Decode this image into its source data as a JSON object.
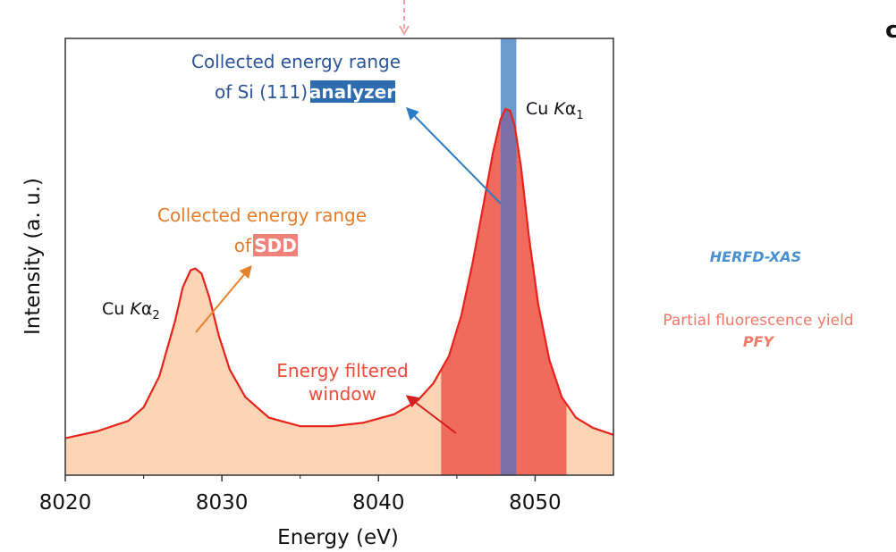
{
  "chart_data": {
    "type": "line",
    "title": "",
    "xlabel": "Energy (eV)",
    "ylabel": "Intensity (a. u.)",
    "xlim": [
      8020,
      8055
    ],
    "ylim": [
      0,
      1.0
    ],
    "xticks": [
      8020,
      8030,
      8040,
      8050
    ],
    "grid": false,
    "series": [
      {
        "name": "Cu K-alpha emission",
        "color": "#e8231c",
        "fill": "#fbd5b5",
        "x": [
          8020,
          8022,
          8024,
          8025,
          8026,
          8027,
          8027.5,
          8028,
          8028.3,
          8028.7,
          8029.2,
          8029.8,
          8030.5,
          8031.5,
          8033,
          8035,
          8037,
          8039,
          8041,
          8042.5,
          8043.5,
          8044.5,
          8045.3,
          8046,
          8046.7,
          8047.3,
          8047.8,
          8048.1,
          8048.4,
          8048.7,
          8049.1,
          8049.6,
          8050.2,
          8050.9,
          8051.7,
          8052.6,
          8053.7,
          8055
        ],
        "y": [
          0.04,
          0.06,
          0.09,
          0.13,
          0.22,
          0.38,
          0.48,
          0.53,
          0.535,
          0.52,
          0.45,
          0.34,
          0.24,
          0.16,
          0.1,
          0.075,
          0.075,
          0.085,
          0.11,
          0.15,
          0.2,
          0.28,
          0.4,
          0.55,
          0.72,
          0.87,
          0.97,
          1.0,
          0.995,
          0.95,
          0.83,
          0.63,
          0.43,
          0.27,
          0.16,
          0.1,
          0.07,
          0.05
        ]
      }
    ],
    "shaded_windows": [
      {
        "name": "Energy filtered window",
        "x_range": [
          8044,
          8052
        ],
        "color": "#f06a5e"
      },
      {
        "name": "Si (111) analyzer range",
        "x_range": [
          8047.8,
          8048.8
        ],
        "color": "#6c9bd0"
      }
    ],
    "annotations": {
      "analyzer_line1": "Collected energy range",
      "analyzer_line2_prefix": "of Si (111) ",
      "analyzer_highlight": "analyzer",
      "peak1_prefix": "Cu ",
      "peak1_italic": "K",
      "peak1_greek": "α",
      "peak1_sub": "1",
      "peak2_prefix": "Cu ",
      "peak2_italic": "K",
      "peak2_greek": "α",
      "peak2_sub": "2",
      "sdd_line1": "Collected energy range",
      "sdd_line2_prefix": "of ",
      "sdd_highlight": "SDD",
      "window_line1": "Energy filtered",
      "window_line2": "window",
      "herfd": "HERFD-XAS",
      "pfy_line1": "Partial fluorescence yield",
      "pfy_line2": "PFY",
      "panel_letter": "c"
    },
    "colors": {
      "analyzer_text": "#2e5597",
      "analyzer_highlight_bg": "#2e6bb0",
      "sdd_text": "#e57c2a",
      "sdd_highlight_bg": "#f0827a",
      "window_text": "#f04a3a",
      "herfd_text": "#4a90d0",
      "pfy_text": "#f07a6a",
      "blue_arrow": "#2b7cc4",
      "orange_arrow": "#e8822a",
      "red_arrow": "#d42020",
      "dashed_top": "#f3a0a0"
    }
  }
}
